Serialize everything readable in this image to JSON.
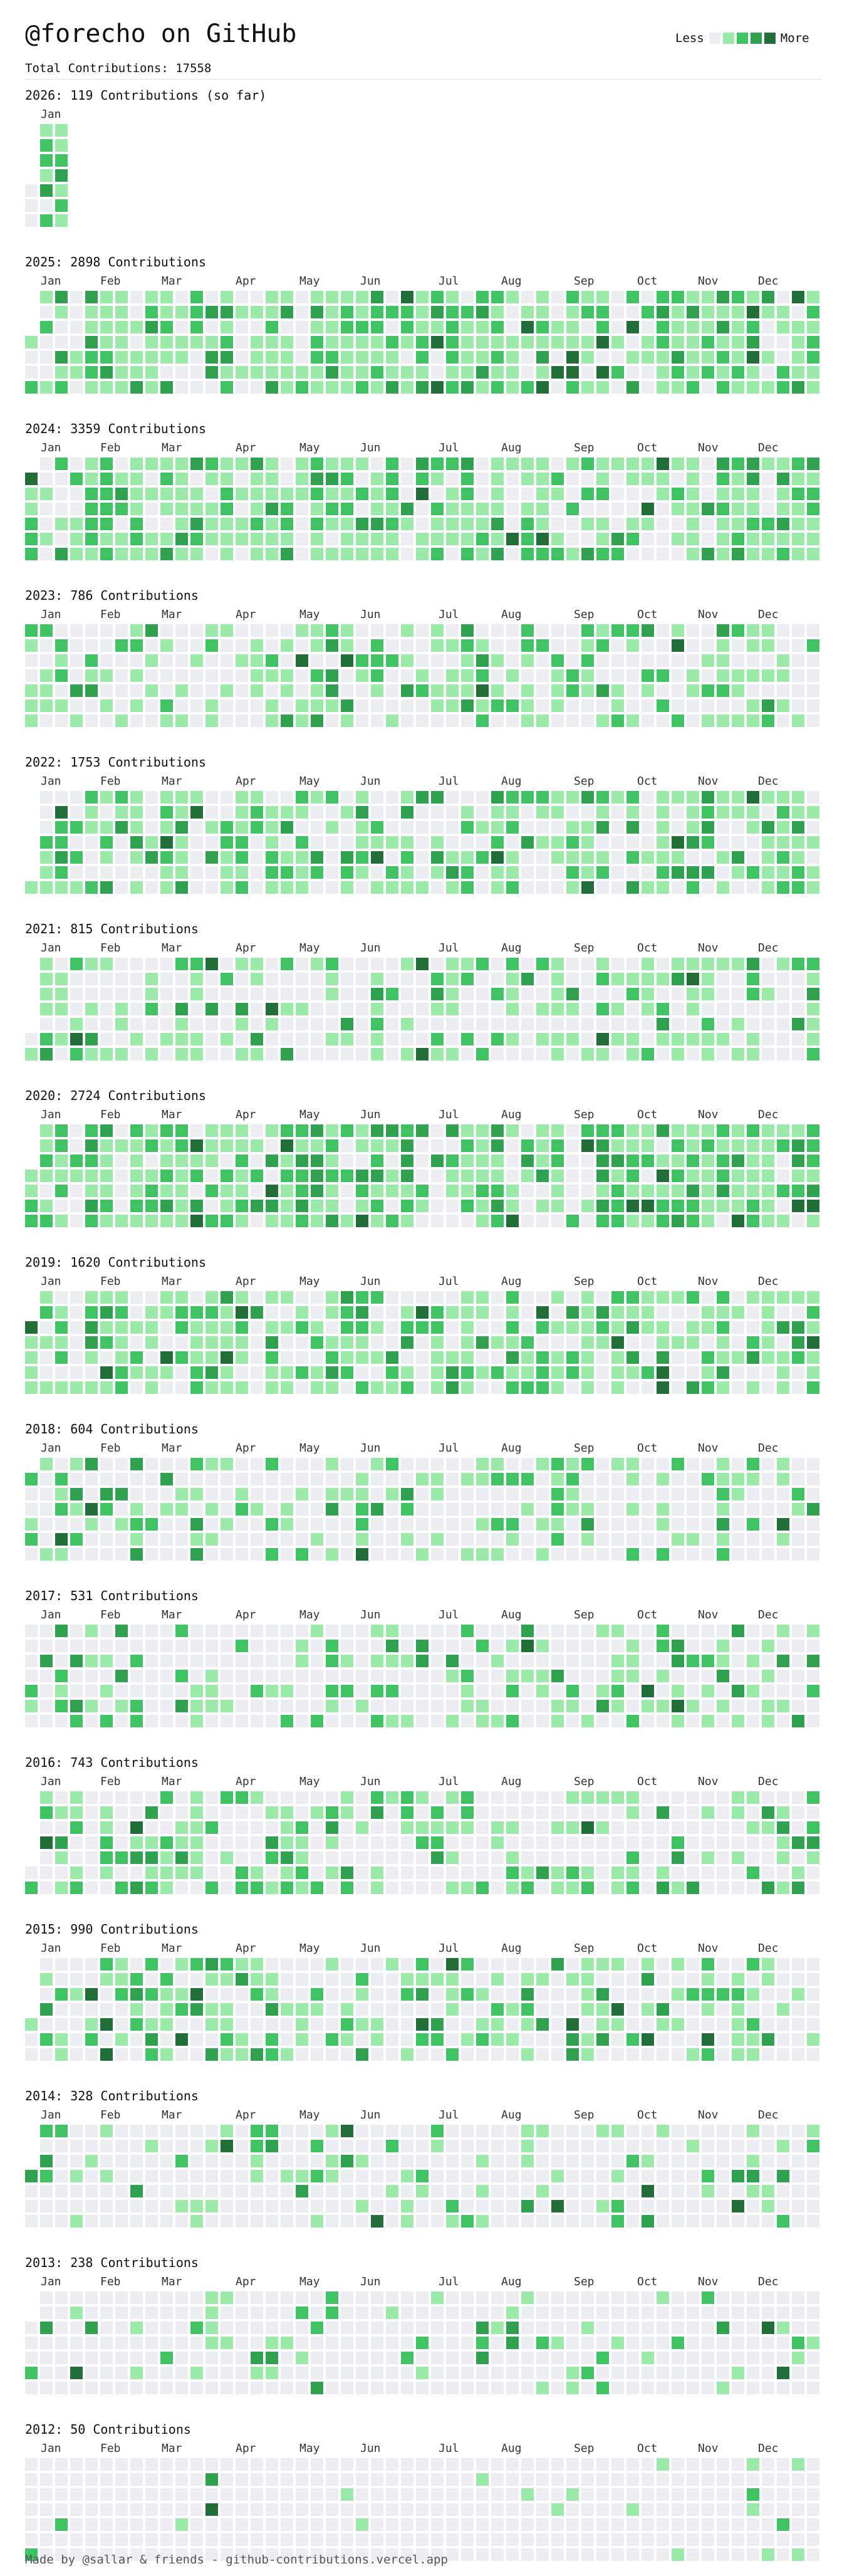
{
  "header": {
    "title": "@forecho on GitHub",
    "total": "Total Contributions: 17558",
    "legend_less": "Less",
    "legend_more": "More"
  },
  "colors": {
    "level0": "#ebedf0",
    "level1": "#9be9a8",
    "level2": "#40c463",
    "level3": "#30a14e",
    "level4": "#216e39"
  },
  "years": [
    {
      "year": 2026,
      "heading": "2026: 119 Contributions (so far)",
      "months": [
        "Jan"
      ],
      "seed": 2026,
      "weeks": 3,
      "first_weekday": 4,
      "activity": 0.6
    },
    {
      "year": 2025,
      "heading": "2025: 2898 Contributions",
      "months": [
        "Jan",
        "Feb",
        "Mar",
        "Apr",
        "May",
        "Jun",
        "Jul",
        "Aug",
        "Sep",
        "Oct",
        "Nov",
        "Dec"
      ],
      "seed": 2025,
      "weeks": 53,
      "first_weekday": 3,
      "activity": 0.88
    },
    {
      "year": 2024,
      "heading": "2024: 3359 Contributions",
      "months": [
        "Jan",
        "Feb",
        "Mar",
        "Apr",
        "May",
        "Jun",
        "Jul",
        "Aug",
        "Sep",
        "Oct",
        "Nov",
        "Dec"
      ],
      "seed": 2024,
      "weeks": 53,
      "first_weekday": 1,
      "activity": 0.9
    },
    {
      "year": 2023,
      "heading": "2023: 786 Contributions",
      "months": [
        "Jan",
        "Feb",
        "Mar",
        "Apr",
        "May",
        "Jun",
        "Jul",
        "Aug",
        "Sep",
        "Oct",
        "Nov",
        "Dec"
      ],
      "seed": 2023,
      "weeks": 53,
      "first_weekday": 0,
      "activity": 0.45
    },
    {
      "year": 2022,
      "heading": "2022: 1753 Contributions",
      "months": [
        "Jan",
        "Feb",
        "Mar",
        "Apr",
        "May",
        "Jun",
        "Jul",
        "Aug",
        "Sep",
        "Oct",
        "Nov",
        "Dec"
      ],
      "seed": 2022,
      "weeks": 53,
      "first_weekday": 6,
      "activity": 0.65
    },
    {
      "year": 2021,
      "heading": "2021: 815 Contributions",
      "months": [
        "Jan",
        "Feb",
        "Mar",
        "Apr",
        "May",
        "Jun",
        "Jul",
        "Aug",
        "Sep",
        "Oct",
        "Nov",
        "Dec"
      ],
      "seed": 2021,
      "weeks": 53,
      "first_weekday": 5,
      "activity": 0.45
    },
    {
      "year": 2020,
      "heading": "2020: 2724 Contributions",
      "months": [
        "Jan",
        "Feb",
        "Mar",
        "Apr",
        "May",
        "Jun",
        "Jul",
        "Aug",
        "Sep",
        "Oct",
        "Nov",
        "Dec"
      ],
      "seed": 2020,
      "weeks": 53,
      "first_weekday": 3,
      "activity": 0.8
    },
    {
      "year": 2019,
      "heading": "2019: 1620 Contributions",
      "months": [
        "Jan",
        "Feb",
        "Mar",
        "Apr",
        "May",
        "Jun",
        "Jul",
        "Aug",
        "Sep",
        "Oct",
        "Nov",
        "Dec"
      ],
      "seed": 2019,
      "weeks": 53,
      "first_weekday": 2,
      "activity": 0.62
    },
    {
      "year": 2018,
      "heading": "2018: 604 Contributions",
      "months": [
        "Jan",
        "Feb",
        "Mar",
        "Apr",
        "May",
        "Jun",
        "Jul",
        "Aug",
        "Sep",
        "Oct",
        "Nov",
        "Dec"
      ],
      "seed": 2018,
      "weeks": 53,
      "first_weekday": 1,
      "activity": 0.4
    },
    {
      "year": 2017,
      "heading": "2017: 531 Contributions",
      "months": [
        "Jan",
        "Feb",
        "Mar",
        "Apr",
        "May",
        "Jun",
        "Jul",
        "Aug",
        "Sep",
        "Oct",
        "Nov",
        "Dec"
      ],
      "seed": 2017,
      "weeks": 53,
      "first_weekday": 0,
      "activity": 0.38
    },
    {
      "year": 2016,
      "heading": "2016: 743 Contributions",
      "months": [
        "Jan",
        "Feb",
        "Mar",
        "Apr",
        "May",
        "Jun",
        "Jul",
        "Aug",
        "Sep",
        "Oct",
        "Nov",
        "Dec"
      ],
      "seed": 2016,
      "weeks": 53,
      "first_weekday": 5,
      "activity": 0.44
    },
    {
      "year": 2015,
      "heading": "2015: 990 Contributions",
      "months": [
        "Jan",
        "Feb",
        "Mar",
        "Apr",
        "May",
        "Jun",
        "Jul",
        "Aug",
        "Sep",
        "Oct",
        "Nov",
        "Dec"
      ],
      "seed": 2015,
      "weeks": 53,
      "first_weekday": 4,
      "activity": 0.5
    },
    {
      "year": 2014,
      "heading": "2014: 328 Contributions",
      "months": [
        "Jan",
        "Feb",
        "Mar",
        "Apr",
        "May",
        "Jun",
        "Jul",
        "Aug",
        "Sep",
        "Oct",
        "Nov",
        "Dec"
      ],
      "seed": 2014,
      "weeks": 53,
      "first_weekday": 3,
      "activity": 0.22
    },
    {
      "year": 2013,
      "heading": "2013: 238 Contributions",
      "months": [
        "Jan",
        "Feb",
        "Mar",
        "Apr",
        "May",
        "Jun",
        "Jul",
        "Aug",
        "Sep",
        "Oct",
        "Nov",
        "Dec"
      ],
      "seed": 2013,
      "weeks": 53,
      "first_weekday": 2,
      "activity": 0.18
    },
    {
      "year": 2012,
      "heading": "2012: 50 Contributions",
      "months": [
        "Jan",
        "Feb",
        "Mar",
        "Apr",
        "May",
        "Jun",
        "Jul",
        "Aug",
        "Sep",
        "Oct",
        "Nov",
        "Dec"
      ],
      "seed": 2012,
      "weeks": 53,
      "first_weekday": 0,
      "activity": 0.06
    }
  ],
  "footer": "Made by @sallar & friends - github-contributions.vercel.app"
}
